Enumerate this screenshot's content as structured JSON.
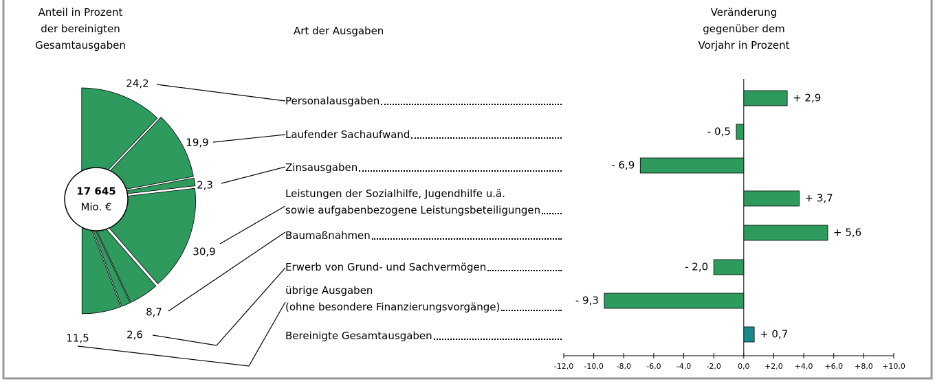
{
  "header": {
    "left": "Anteil in Prozent\nder bereinigten\nGesamtausgaben",
    "middle": "Art der Ausgaben",
    "right": "Veränderung\ngegenüber dem\nVorjahr in Prozent"
  },
  "chart_data": [
    {
      "type": "pie",
      "half": true,
      "color": "#2e9a5e",
      "values": [
        24.2,
        19.9,
        2.3,
        30.9,
        8.7,
        2.6,
        11.5
      ],
      "value_labels": [
        "24,2",
        "19,9",
        "2,3",
        "30,9",
        "8,7",
        "2,6",
        "11,5"
      ],
      "total": {
        "value": 17645,
        "label": "17 645"
      },
      "total_unit": "Mio. €"
    },
    {
      "type": "barh",
      "categories": [
        "Personalausgaben",
        "Laufender Sachaufwand",
        "Zinsausgaben",
        "Leistungen der Sozialhilfe, Jugendhilfe u.ä.\nsowie aufgabenbezogene Leistungsbeteiligungen",
        "Baumaßnahmen",
        "Erwerb von Grund- und Sachvermögen",
        "übrige Ausgaben\n(ohne besondere Finanzierungsvorgänge)",
        "Bereinigte Gesamtausgaben"
      ],
      "values": [
        2.9,
        -0.5,
        -6.9,
        3.7,
        5.6,
        -2.0,
        -9.3,
        0.7
      ],
      "value_labels": [
        "+ 2,9",
        "- 0,5",
        "- 6,9",
        "+ 3,7",
        "+ 5,6",
        "- 2,0",
        "- 9,3",
        "+ 0,7"
      ],
      "colors": [
        "#2e9a5e",
        "#2e9a5e",
        "#2e9a5e",
        "#2e9a5e",
        "#2e9a5e",
        "#2e9a5e",
        "#2e9a5e",
        "#1a8a8a"
      ],
      "xlim": [
        -12,
        10
      ],
      "xticks": [
        {
          "value": -12,
          "label": "-12,0"
        },
        {
          "value": -10,
          "label": "-10,0"
        },
        {
          "value": -8,
          "label": "-8,0"
        },
        {
          "value": -6,
          "label": "-6,0"
        },
        {
          "value": -4,
          "label": "-4,0"
        },
        {
          "value": -2,
          "label": "-2,0"
        },
        {
          "value": 0,
          "label": "0,0"
        },
        {
          "value": 2,
          "label": "+2,0"
        },
        {
          "value": 4,
          "label": "+4,0"
        },
        {
          "value": 6,
          "label": "+6,0"
        },
        {
          "value": 8,
          "label": "+8,0"
        },
        {
          "value": 10,
          "label": "+10,0"
        }
      ]
    }
  ]
}
